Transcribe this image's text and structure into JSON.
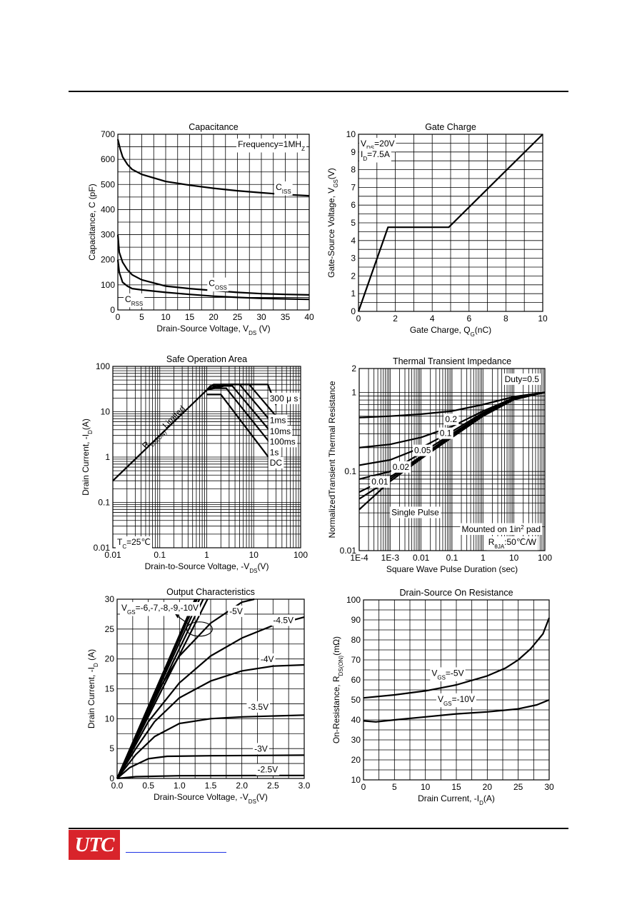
{
  "chart_data": [
    {
      "id": "capacitance",
      "type": "line",
      "title": "Capacitance",
      "xlabel": "Drain-Source Voltage, V",
      "xlabel_sub": "DS",
      "xlabel_tail": " (V)",
      "ylabel": "Capacitance, C (pF)",
      "xlim": [
        0,
        40
      ],
      "ylim": [
        0,
        700
      ],
      "x_ticks": [
        0,
        5,
        10,
        15,
        20,
        25,
        30,
        35,
        40
      ],
      "y_ticks": [
        0,
        100,
        200,
        300,
        400,
        500,
        600,
        700
      ],
      "annotation": "Frequency=1MH",
      "annotation_sub": "Z",
      "series": [
        {
          "name": "C",
          "sub": "ISS",
          "points": [
            [
              0,
              680
            ],
            [
              0.5,
              640
            ],
            [
              1,
              610
            ],
            [
              2,
              580
            ],
            [
              3,
              560
            ],
            [
              5,
              540
            ],
            [
              10,
              512
            ],
            [
              15,
              497
            ],
            [
              20,
              485
            ],
            [
              25,
              475
            ],
            [
              30,
              467
            ],
            [
              35,
              460
            ],
            [
              40,
              455
            ]
          ]
        },
        {
          "name": "C",
          "sub": "OSS",
          "points": [
            [
              0,
              300
            ],
            [
              0.3,
              230
            ],
            [
              1,
              190
            ],
            [
              2,
              160
            ],
            [
              3,
              140
            ],
            [
              5,
              120
            ],
            [
              10,
              95
            ],
            [
              15,
              85
            ],
            [
              20,
              77
            ],
            [
              25,
              70
            ],
            [
              30,
              65
            ],
            [
              35,
              62
            ],
            [
              40,
              60
            ]
          ]
        },
        {
          "name": "C",
          "sub": "RSS",
          "points": [
            [
              0,
              200
            ],
            [
              0.3,
              150
            ],
            [
              1,
              110
            ],
            [
              2,
              95
            ],
            [
              3,
              85
            ],
            [
              5,
              80
            ],
            [
              10,
              70
            ],
            [
              15,
              62
            ],
            [
              20,
              55
            ],
            [
              25,
              50
            ],
            [
              30,
              46
            ],
            [
              35,
              44
            ],
            [
              40,
              42
            ]
          ]
        }
      ]
    },
    {
      "id": "gate-charge",
      "type": "line",
      "title": "Gate Charge",
      "xlabel": "Gate Charge, Q",
      "xlabel_sub": "G",
      "xlabel_tail": "(nC)",
      "ylabel": "Gate-Source Voltage, V",
      "ylabel_sub": "GS",
      "ylabel_tail": "(V)",
      "xlim": [
        0,
        10
      ],
      "ylim": [
        0,
        10
      ],
      "x_ticks": [
        0,
        2,
        4,
        6,
        8,
        10
      ],
      "y_ticks": [
        0,
        1,
        2,
        3,
        4,
        5,
        6,
        7,
        8,
        9,
        10
      ],
      "legend_lines": [
        {
          "text": "V",
          "sub": "DS",
          "tail": "=20V"
        },
        {
          "text": "I",
          "sub": "D",
          "tail": "=7.5A"
        }
      ],
      "series": [
        {
          "points": [
            [
              0,
              0
            ],
            [
              1.6,
              4.75
            ],
            [
              4.9,
              4.75
            ],
            [
              10,
              10
            ]
          ]
        }
      ]
    },
    {
      "id": "safe-operation-area",
      "type": "line",
      "title": "Safe Operation Area",
      "xlabel": "Drain-to-Source Voltage, -V",
      "xlabel_sub": "DS",
      "xlabel_tail": "(V)",
      "ylabel": "Drain Current, -I",
      "ylabel_sub": "D",
      "ylabel_tail": "(A)",
      "x_scale": "log",
      "y_scale": "log",
      "xlim": [
        0.01,
        100
      ],
      "ylim": [
        0.01,
        100
      ],
      "x_ticks": [
        "0.01",
        "0.1",
        "1",
        "10",
        "100"
      ],
      "y_ticks": [
        "0.01",
        "0.1",
        "1",
        "10",
        "100"
      ],
      "region_label": "R",
      "region_label_sub": "DS(ON)",
      "region_label_tail": " Limited",
      "condition": "T",
      "condition_sub": "C",
      "condition_tail": "=25℃",
      "series": [
        {
          "name": "R_DS(ON) Limited",
          "points": [
            [
              0.01,
              0.3
            ],
            [
              1,
              30
            ]
          ]
        },
        {
          "name": "300 μ s",
          "points": [
            [
              1,
              30
            ],
            [
              3.2,
              40
            ],
            [
              20,
              40
            ],
            [
              30,
              14
            ]
          ]
        },
        {
          "name": "1ms",
          "points": [
            [
              1,
              30
            ],
            [
              2,
              40
            ],
            [
              8,
              40
            ],
            [
              30,
              8
            ]
          ]
        },
        {
          "name": "10ms",
          "points": [
            [
              1,
              30
            ],
            [
              1.4,
              40
            ],
            [
              5,
              40
            ],
            [
              30,
              4.5
            ]
          ]
        },
        {
          "name": "100ms",
          "points": [
            [
              1,
              30
            ],
            [
              1.2,
              37
            ],
            [
              3.5,
              37
            ],
            [
              30,
              2.6
            ]
          ]
        },
        {
          "name": "1s",
          "points": [
            [
              1,
              30
            ],
            [
              1.1,
              33
            ],
            [
              2.6,
              33
            ],
            [
              30,
              1.4
            ]
          ]
        },
        {
          "name": "DC",
          "points": [
            [
              1,
              24
            ],
            [
              2,
              24
            ],
            [
              30,
              0.6
            ]
          ]
        }
      ],
      "labels": [
        "300 μ s",
        "1ms",
        "10ms",
        "100ms",
        "1s",
        "DC"
      ]
    },
    {
      "id": "thermal-transient-impedance",
      "type": "line",
      "title": "Thermal Transient Impedance",
      "xlabel": "Square Wave Pulse Duration (sec)",
      "ylabel": "NormalizedTransient Thermal Resistance",
      "x_scale": "log",
      "y_scale": "log",
      "xlim": [
        0.0001,
        100
      ],
      "ylim": [
        0.01,
        2
      ],
      "x_ticks": [
        "1E-4",
        "1E-3",
        "0.01",
        "0.1",
        "1",
        "10",
        "100"
      ],
      "y_ticks": [
        "0.01",
        "0.1",
        "1",
        "2"
      ],
      "note_line1": "Mounted on 1in",
      "note_line1_sup": "2",
      "note_line1_tail": " pad",
      "note_line2": "R",
      "note_line2_sub": "θJA",
      "note_line2_tail": ":50℃/W",
      "series": [
        {
          "name": "Duty=0.5",
          "points": [
            [
              0.0001,
              0.48
            ],
            [
              0.001,
              0.5
            ],
            [
              0.01,
              0.53
            ],
            [
              0.1,
              0.58
            ],
            [
              1,
              0.7
            ],
            [
              10,
              0.88
            ],
            [
              100,
              1.0
            ]
          ]
        },
        {
          "name": "0.2",
          "points": [
            [
              0.0001,
              0.2
            ],
            [
              0.001,
              0.22
            ],
            [
              0.01,
              0.27
            ],
            [
              0.1,
              0.37
            ],
            [
              1,
              0.58
            ],
            [
              10,
              0.85
            ],
            [
              100,
              1.0
            ]
          ]
        },
        {
          "name": "0.1",
          "points": [
            [
              0.0001,
              0.12
            ],
            [
              0.001,
              0.14
            ],
            [
              0.01,
              0.2
            ],
            [
              0.1,
              0.32
            ],
            [
              1,
              0.55
            ],
            [
              10,
              0.84
            ],
            [
              100,
              1.0
            ]
          ]
        },
        {
          "name": "0.05",
          "points": [
            [
              0.0001,
              0.08
            ],
            [
              0.001,
              0.1
            ],
            [
              0.01,
              0.17
            ],
            [
              0.1,
              0.3
            ],
            [
              1,
              0.53
            ],
            [
              10,
              0.83
            ],
            [
              100,
              1.0
            ]
          ]
        },
        {
          "name": "0.02",
          "points": [
            [
              0.0001,
              0.055
            ],
            [
              0.001,
              0.085
            ],
            [
              0.01,
              0.155
            ],
            [
              0.1,
              0.29
            ],
            [
              1,
              0.52
            ],
            [
              10,
              0.82
            ],
            [
              100,
              1.0
            ]
          ]
        },
        {
          "name": "0.01",
          "points": [
            [
              0.0001,
              0.045
            ],
            [
              0.001,
              0.08
            ],
            [
              0.01,
              0.15
            ],
            [
              0.1,
              0.28
            ],
            [
              1,
              0.51
            ],
            [
              10,
              0.82
            ],
            [
              100,
              1.0
            ]
          ]
        },
        {
          "name": "Single Pulse",
          "points": [
            [
              0.0001,
              0.033
            ],
            [
              0.001,
              0.075
            ],
            [
              0.01,
              0.145
            ],
            [
              0.1,
              0.27
            ],
            [
              1,
              0.5
            ],
            [
              10,
              0.81
            ],
            [
              100,
              1.0
            ]
          ]
        }
      ],
      "labels": [
        "Duty=0.5",
        "0.2",
        "0.1",
        "0.05",
        "0.02",
        "0.01",
        "Single Pulse"
      ]
    },
    {
      "id": "output-characteristics",
      "type": "line",
      "title": "Output Characteristics",
      "xlabel": "Drain-Source Voltage, -V",
      "xlabel_sub": "DS",
      "xlabel_tail": "(V)",
      "ylabel": "Drain Current, -I",
      "ylabel_sub": "D",
      "ylabel_tail": " (A)",
      "xlim": [
        0,
        3
      ],
      "ylim": [
        0,
        30
      ],
      "x_ticks": [
        "0.0",
        "0.5",
        "1.0",
        "1.5",
        "2.0",
        "2.5",
        "3.0"
      ],
      "y_ticks": [
        0,
        5,
        10,
        15,
        20,
        25,
        30
      ],
      "group_label": "V",
      "group_label_sub": "GS",
      "group_label_tail": "=-6,-7,-8,-9,-10V",
      "series": [
        {
          "name": "-10V",
          "points": [
            [
              0,
              0
            ],
            [
              1.25,
              30
            ]
          ]
        },
        {
          "name": "-9V",
          "points": [
            [
              0,
              0
            ],
            [
              1.28,
              30
            ]
          ]
        },
        {
          "name": "-8V",
          "points": [
            [
              0,
              0
            ],
            [
              1.32,
              30
            ]
          ]
        },
        {
          "name": "-7V",
          "points": [
            [
              0,
              0
            ],
            [
              1.38,
              30
            ]
          ]
        },
        {
          "name": "-6V",
          "points": [
            [
              0,
              0
            ],
            [
              1.45,
              30
            ]
          ]
        },
        {
          "name": "-5V",
          "points": [
            [
              0,
              0
            ],
            [
              0.5,
              12
            ],
            [
              1,
              20.5
            ],
            [
              1.5,
              26
            ],
            [
              2,
              29.5
            ],
            [
              2.2,
              30
            ]
          ]
        },
        {
          "name": "-4.5V",
          "points": [
            [
              0,
              0
            ],
            [
              0.5,
              9.5
            ],
            [
              1,
              16
            ],
            [
              1.5,
              20.5
            ],
            [
              2,
              23.5
            ],
            [
              2.5,
              25.6
            ],
            [
              3,
              27
            ]
          ]
        },
        {
          "name": "-4V",
          "points": [
            [
              0,
              0
            ],
            [
              0.3,
              5
            ],
            [
              0.6,
              9.5
            ],
            [
              1,
              13.5
            ],
            [
              1.5,
              16.3
            ],
            [
              2,
              18
            ],
            [
              2.5,
              18.8
            ],
            [
              3,
              19
            ]
          ]
        },
        {
          "name": "-3.5V",
          "points": [
            [
              0,
              0
            ],
            [
              0.3,
              4
            ],
            [
              0.6,
              7
            ],
            [
              1,
              9.2
            ],
            [
              1.5,
              10
            ],
            [
              2,
              10.3
            ],
            [
              3,
              10.6
            ]
          ]
        },
        {
          "name": "-3V",
          "points": [
            [
              0,
              0
            ],
            [
              0.2,
              1.8
            ],
            [
              0.5,
              3.3
            ],
            [
              0.8,
              3.7
            ],
            [
              1.5,
              3.8
            ],
            [
              3,
              3.9
            ]
          ]
        },
        {
          "name": "-2.5V",
          "points": [
            [
              0,
              0
            ],
            [
              0.3,
              0.3
            ],
            [
              1,
              0.45
            ],
            [
              3,
              0.5
            ]
          ]
        }
      ],
      "labels": [
        "-5V",
        "-4.5V",
        "-4V",
        "-3.5V",
        "-3V",
        "-2.5V"
      ]
    },
    {
      "id": "drain-source-on-resistance",
      "type": "line",
      "title": "Drain-Source On Resistance",
      "xlabel": "Drain Current, -I",
      "xlabel_sub": "D",
      "xlabel_tail": "(A)",
      "ylabel": "On-Resistance, R",
      "ylabel_sub": "DS(ON)",
      "ylabel_tail": "(mΩ)",
      "xlim": [
        0,
        30
      ],
      "ylim": [
        10,
        100
      ],
      "x_ticks": [
        0,
        5,
        10,
        15,
        20,
        25,
        30
      ],
      "y_ticks": [
        10,
        20,
        30,
        40,
        50,
        60,
        70,
        80,
        90,
        100
      ],
      "series": [
        {
          "name": "V",
          "sub": "GS",
          "tail": "=-5V",
          "points": [
            [
              0,
              51
            ],
            [
              5,
              52.5
            ],
            [
              10,
              54.5
            ],
            [
              15,
              57.5
            ],
            [
              20,
              62
            ],
            [
              23,
              66
            ],
            [
              25,
              70
            ],
            [
              27,
              75.5
            ],
            [
              29,
              83
            ],
            [
              30,
              91
            ]
          ]
        },
        {
          "name": "V",
          "sub": "GS",
          "tail": "=-10V",
          "points": [
            [
              0,
              39.5
            ],
            [
              2,
              39
            ],
            [
              5,
              40
            ],
            [
              10,
              41.5
            ],
            [
              15,
              43
            ],
            [
              20,
              44
            ],
            [
              25,
              45.5
            ],
            [
              28,
              47.5
            ],
            [
              30,
              50
            ]
          ]
        }
      ]
    }
  ],
  "footer": {
    "logo": "UTC"
  }
}
